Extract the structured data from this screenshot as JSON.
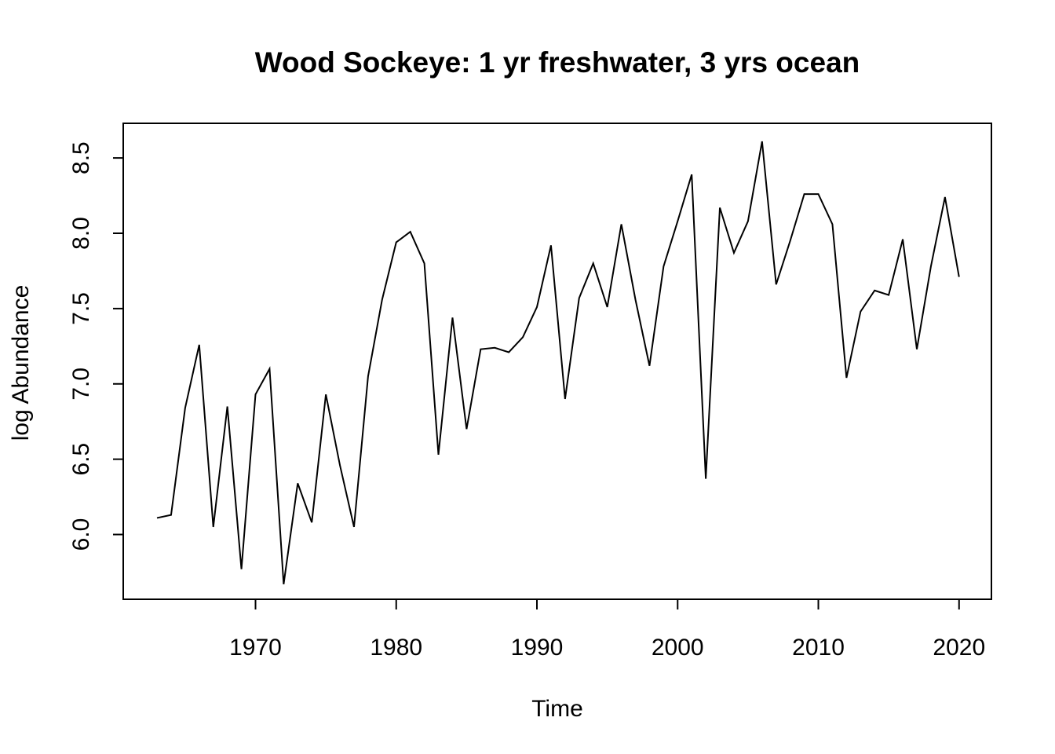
{
  "chart_data": {
    "type": "line",
    "title": "Wood Sockeye: 1 yr freshwater, 3 yrs ocean",
    "xlabel": "Time",
    "ylabel": "log Abundance",
    "xlim": [
      1960.6,
      2022.3
    ],
    "ylim": [
      5.57,
      8.73
    ],
    "xticks": [
      1970,
      1980,
      1990,
      2000,
      2010,
      2020
    ],
    "yticks": [
      6.0,
      6.5,
      7.0,
      7.5,
      8.0,
      8.5
    ],
    "xtick_labels": [
      "1970",
      "1980",
      "1990",
      "2000",
      "2010",
      "2020"
    ],
    "ytick_labels": [
      "6.0",
      "6.5",
      "7.0",
      "7.5",
      "8.0",
      "8.5"
    ],
    "grid": false,
    "series": [
      {
        "color": "#000000",
        "x": [
          1963,
          1964,
          1965,
          1966,
          1967,
          1968,
          1969,
          1970,
          1971,
          1972,
          1973,
          1974,
          1975,
          1976,
          1977,
          1978,
          1979,
          1980,
          1981,
          1982,
          1983,
          1984,
          1985,
          1986,
          1987,
          1988,
          1989,
          1990,
          1991,
          1992,
          1993,
          1994,
          1995,
          1996,
          1997,
          1998,
          1999,
          2000,
          2001,
          2002,
          2003,
          2004,
          2005,
          2006,
          2007,
          2008,
          2009,
          2010,
          2011,
          2012,
          2013,
          2014,
          2015,
          2016,
          2017,
          2018,
          2019,
          2020
        ],
        "values": [
          6.11,
          6.13,
          6.84,
          7.26,
          6.05,
          6.85,
          5.77,
          6.93,
          7.1,
          5.67,
          6.34,
          6.08,
          6.93,
          6.46,
          6.05,
          7.05,
          7.56,
          7.94,
          8.01,
          7.8,
          6.53,
          7.44,
          6.7,
          7.23,
          7.24,
          7.21,
          7.31,
          7.51,
          7.92,
          6.9,
          7.57,
          7.8,
          7.51,
          8.06,
          7.56,
          7.12,
          7.78,
          8.08,
          8.39,
          6.37,
          8.17,
          7.87,
          8.08,
          8.61,
          7.66,
          7.95,
          8.26,
          8.26,
          8.06,
          7.04,
          7.48,
          7.62,
          7.59,
          7.96,
          7.23,
          7.78,
          8.24,
          7.71
        ]
      }
    ]
  }
}
